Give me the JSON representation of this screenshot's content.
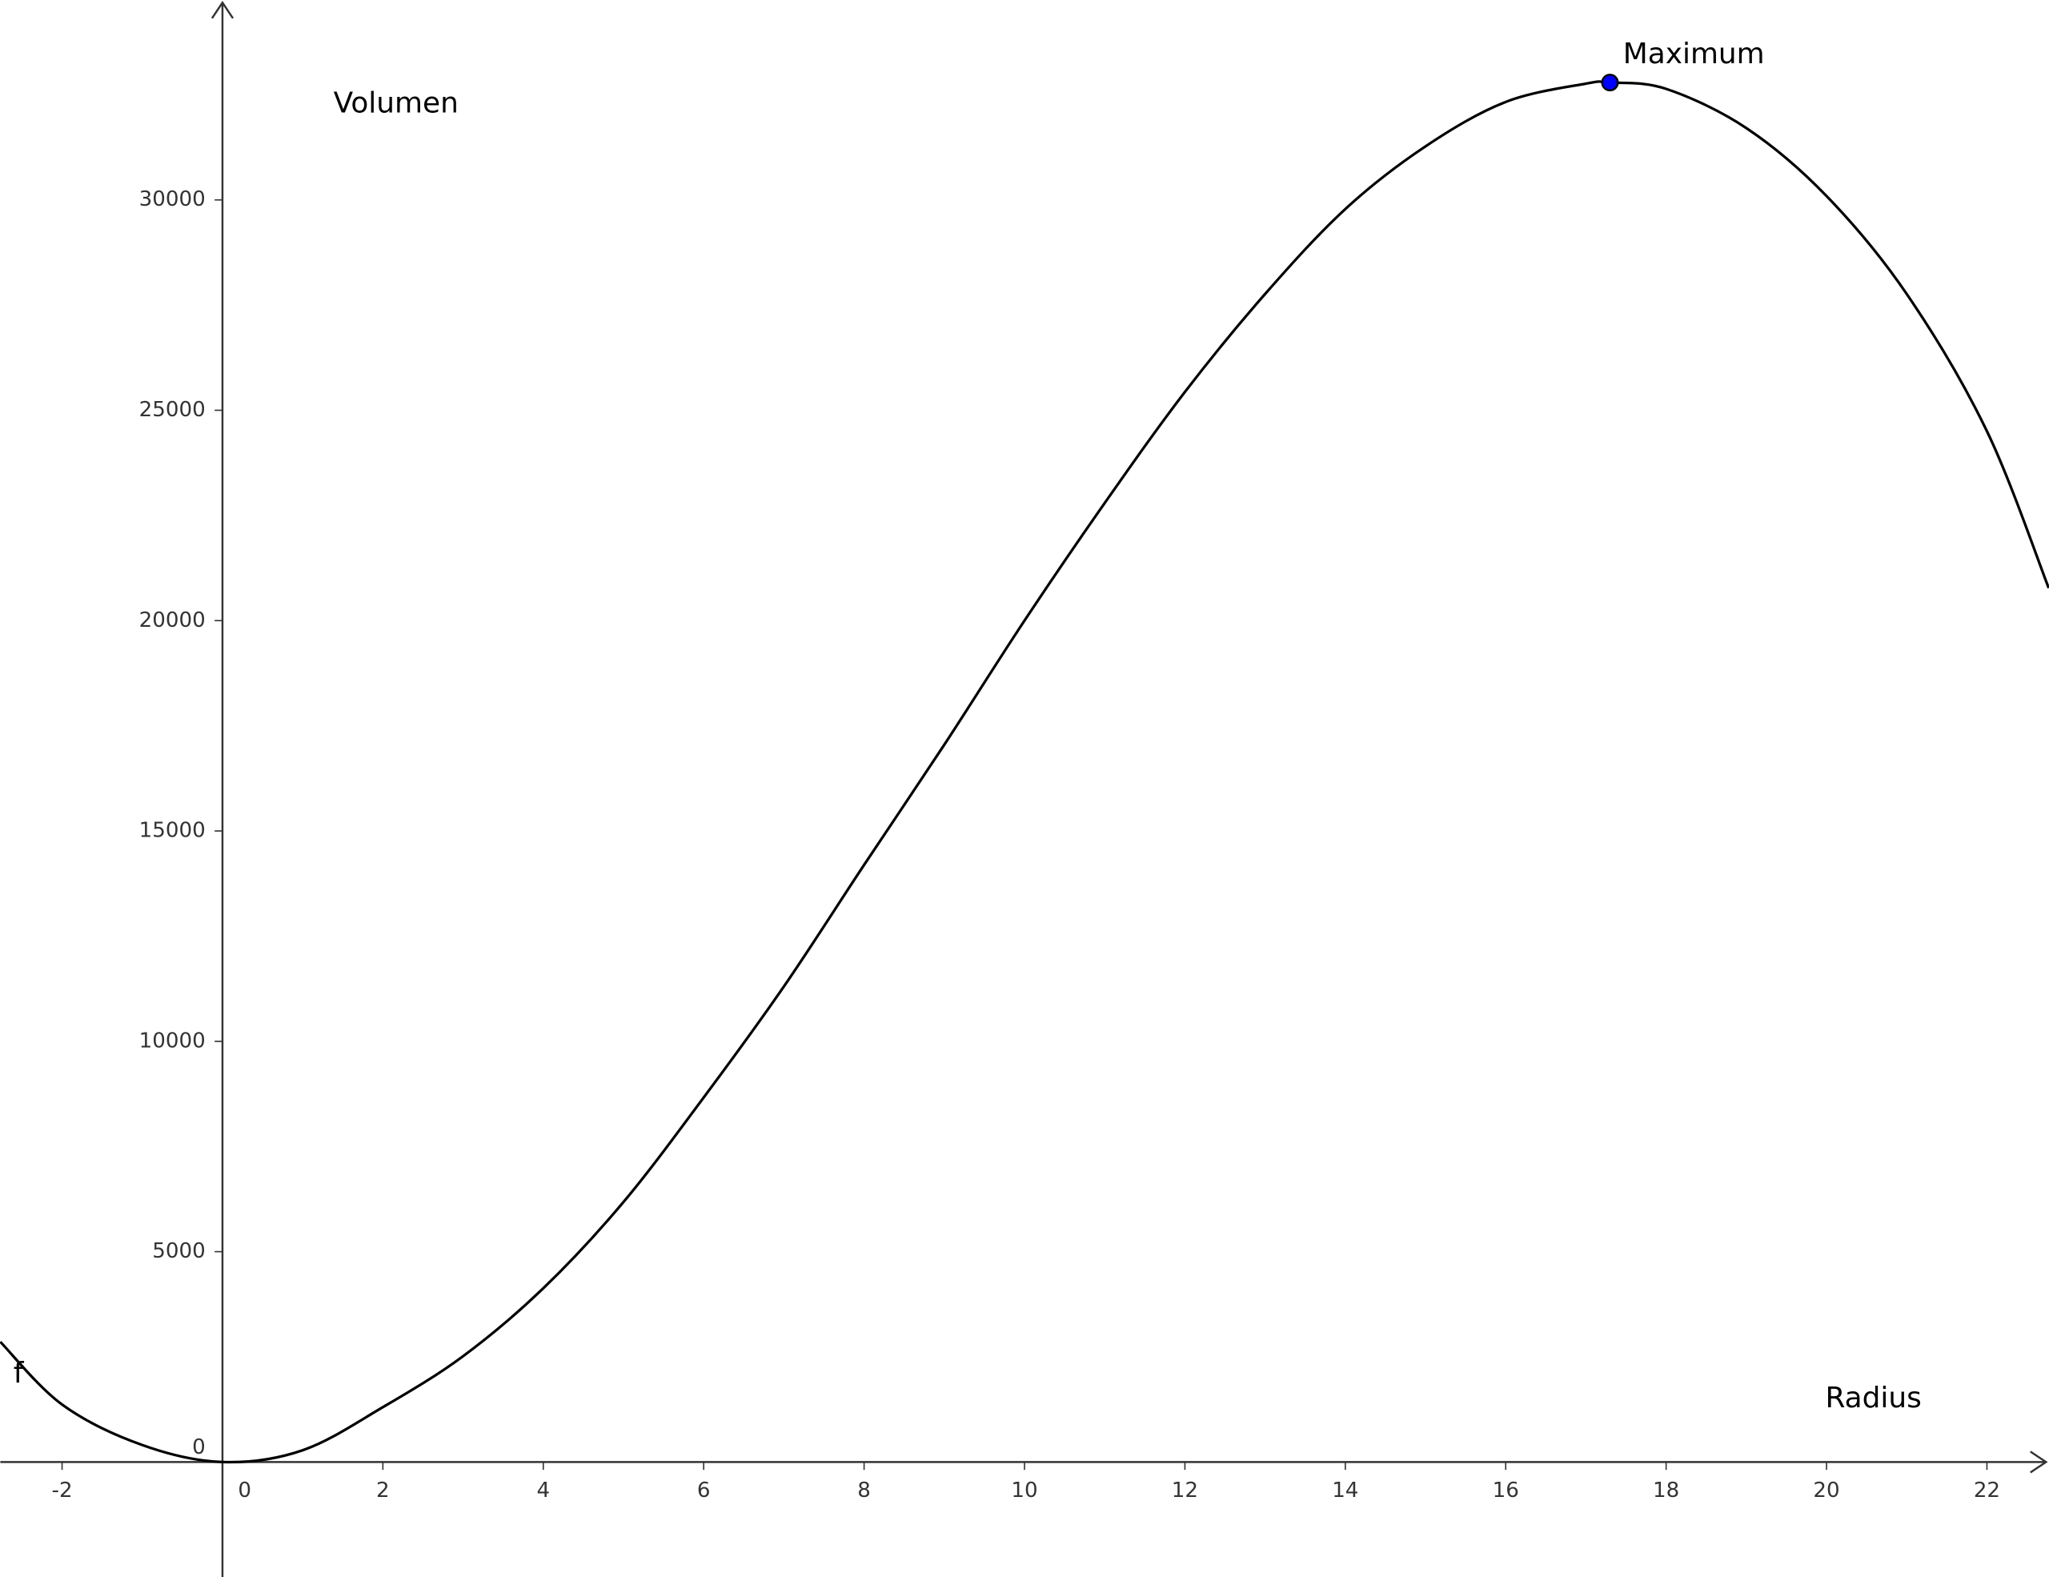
{
  "chart_data": {
    "type": "line",
    "x_label": "Radius",
    "y_label": "Volumen",
    "xlim": [
      -2.77,
      22.77
    ],
    "ylim": [
      -2733,
      34752
    ],
    "xticks": [
      -2,
      0,
      2,
      4,
      6,
      8,
      10,
      12,
      14,
      16,
      18,
      20,
      22
    ],
    "yticks": [
      0,
      5000,
      10000,
      15000,
      20000,
      25000,
      30000
    ],
    "x": [
      -2.77,
      -2,
      -1,
      0,
      1,
      2,
      3,
      4,
      5,
      6,
      7,
      8,
      9,
      10,
      11,
      12,
      13,
      14,
      15,
      16,
      17,
      17.3,
      18,
      19,
      20,
      21,
      22,
      22.77
    ],
    "series": [
      {
        "name": "f",
        "color": "#000000",
        "values": [
          2857,
          1366,
          404,
          0,
          280,
          1304,
          2516,
          4130,
          6180,
          8665,
          11304,
          14193,
          17050,
          20000,
          22795,
          25435,
          27764,
          29783,
          31273,
          32329,
          32764,
          32790,
          32640,
          31708,
          30093,
          27764,
          24503,
          20776
        ]
      }
    ],
    "annotations": [
      {
        "text": "Maximum",
        "x": 17.3,
        "y": 32790,
        "color": "#0000ff"
      }
    ]
  }
}
